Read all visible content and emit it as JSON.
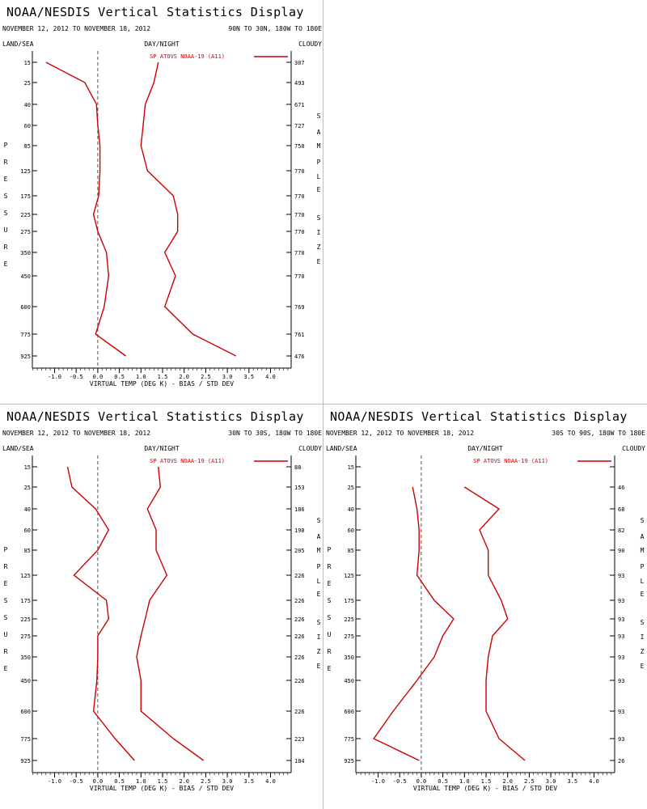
{
  "title": "NOAA/NESDIS Vertical Statistics Display",
  "date_range": "NOVEMBER 12, 2012 TO NOVEMBER 18, 2012",
  "header_labels": {
    "land_sea": "LAND/SEA",
    "day_night": "DAY/NIGHT",
    "cloudy": "CLOUDY"
  },
  "left_axis_label": "PRESSURE",
  "right_axis_label": "SAMPLE SIZE",
  "colors": {
    "series": "#cc0000",
    "zero_line": "#555555",
    "axis": "#000000"
  },
  "chart_data": [
    {
      "type": "line",
      "region": "90N TO 30N, 180W TO 180E",
      "legend": "SP ATOVS NOAA-19 (A11)",
      "xlabel": "VIRTUAL TEMP (DEG K) - BIAS / STD DEV",
      "x_ticks": [
        "-1.0",
        "-0.5",
        "0.0",
        "0.5",
        "1.0",
        "1.5",
        "2.0",
        "2.5",
        "3.0",
        "3.5",
        "4.0"
      ],
      "xlim": [
        -1.5,
        4.5
      ],
      "pressure_levels": [
        15,
        25,
        40,
        60,
        85,
        125,
        175,
        225,
        275,
        350,
        450,
        600,
        775,
        925
      ],
      "sample_size": [
        "307",
        "493",
        "671",
        "727",
        "750",
        "770",
        "770",
        "770",
        "770",
        "770",
        "770",
        "769",
        "761",
        "476"
      ],
      "series": [
        {
          "name": "BIAS",
          "points": [
            [
              15,
              -1.2
            ],
            [
              25,
              -0.3
            ],
            [
              40,
              -0.03
            ],
            [
              60,
              0.0
            ],
            [
              85,
              0.05
            ],
            [
              125,
              0.05
            ],
            [
              175,
              0.02
            ],
            [
              225,
              -0.1
            ],
            [
              275,
              0.0
            ],
            [
              350,
              0.2
            ],
            [
              450,
              0.25
            ],
            [
              600,
              0.15
            ],
            [
              775,
              -0.05
            ],
            [
              925,
              0.65
            ]
          ]
        },
        {
          "name": "STD DEV",
          "points": [
            [
              15,
              1.4
            ],
            [
              25,
              1.3
            ],
            [
              40,
              1.1
            ],
            [
              60,
              1.05
            ],
            [
              85,
              1.0
            ],
            [
              125,
              1.15
            ],
            [
              175,
              1.75
            ],
            [
              225,
              1.85
            ],
            [
              275,
              1.85
            ],
            [
              350,
              1.55
            ],
            [
              450,
              1.8
            ],
            [
              600,
              1.55
            ],
            [
              775,
              2.2
            ],
            [
              925,
              3.2
            ]
          ]
        }
      ]
    },
    {
      "type": "line",
      "region": "30N TO 30S, 180W TO 180E",
      "legend": "SP ATOVS NOAA-19 (A11)",
      "xlabel": "VIRTUAL TEMP (DEG K) - BIAS / STD DEV",
      "x_ticks": [
        "-1.0",
        "-0.5",
        "0.0",
        "0.5",
        "1.0",
        "1.5",
        "2.0",
        "2.5",
        "3.0",
        "3.5",
        "4.0"
      ],
      "xlim": [
        -1.5,
        4.5
      ],
      "pressure_levels": [
        15,
        25,
        40,
        60,
        85,
        125,
        175,
        225,
        275,
        350,
        450,
        600,
        775,
        925
      ],
      "sample_size": [
        "88",
        "153",
        "186",
        "198",
        "205",
        "226",
        "226",
        "226",
        "226",
        "226",
        "226",
        "226",
        "223",
        "184"
      ],
      "series": [
        {
          "name": "BIAS",
          "points": [
            [
              15,
              -0.7
            ],
            [
              25,
              -0.6
            ],
            [
              40,
              -0.05
            ],
            [
              60,
              0.25
            ],
            [
              85,
              0.0
            ],
            [
              125,
              -0.55
            ],
            [
              175,
              0.2
            ],
            [
              225,
              0.25
            ],
            [
              275,
              0.0
            ],
            [
              350,
              0.0
            ],
            [
              450,
              -0.02
            ],
            [
              600,
              -0.1
            ],
            [
              775,
              0.4
            ],
            [
              925,
              0.85
            ]
          ]
        },
        {
          "name": "STD DEV",
          "points": [
            [
              15,
              1.4
            ],
            [
              25,
              1.45
            ],
            [
              40,
              1.15
            ],
            [
              60,
              1.35
            ],
            [
              85,
              1.35
            ],
            [
              125,
              1.6
            ],
            [
              175,
              1.2
            ],
            [
              225,
              1.1
            ],
            [
              275,
              1.0
            ],
            [
              350,
              0.9
            ],
            [
              450,
              1.0
            ],
            [
              600,
              1.0
            ],
            [
              775,
              1.75
            ],
            [
              925,
              2.45
            ]
          ]
        }
      ]
    },
    {
      "type": "line",
      "region": "30S TO 90S, 180W TO 180E",
      "legend": "SP ATOVS NOAA-19 (A11)",
      "xlabel": "VIRTUAL TEMP (DEG K) - BIAS / STD DEV",
      "x_ticks": [
        "-1.0",
        "-0.5",
        "0.0",
        "0.5",
        "1.0",
        "1.5",
        "2.0",
        "2.5",
        "3.0",
        "3.5",
        "4.0"
      ],
      "xlim": [
        -1.5,
        4.5
      ],
      "pressure_levels": [
        15,
        25,
        40,
        60,
        85,
        125,
        175,
        225,
        275,
        350,
        450,
        600,
        775,
        925
      ],
      "sample_size": [
        "",
        "46",
        "68",
        "82",
        "90",
        "93",
        "93",
        "93",
        "93",
        "93",
        "93",
        "93",
        "93",
        "26"
      ],
      "series": [
        {
          "name": "BIAS",
          "points": [
            [
              25,
              -0.2
            ],
            [
              40,
              -0.1
            ],
            [
              60,
              -0.05
            ],
            [
              85,
              -0.05
            ],
            [
              125,
              -0.1
            ],
            [
              175,
              0.3
            ],
            [
              225,
              0.75
            ],
            [
              275,
              0.5
            ],
            [
              350,
              0.3
            ],
            [
              450,
              -0.1
            ],
            [
              600,
              -0.65
            ],
            [
              775,
              -1.1
            ],
            [
              925,
              -0.05
            ]
          ]
        },
        {
          "name": "STD DEV",
          "points": [
            [
              25,
              1.0
            ],
            [
              40,
              1.8
            ],
            [
              60,
              1.35
            ],
            [
              85,
              1.55
            ],
            [
              125,
              1.55
            ],
            [
              175,
              1.85
            ],
            [
              225,
              2.0
            ],
            [
              275,
              1.65
            ],
            [
              350,
              1.55
            ],
            [
              450,
              1.5
            ],
            [
              600,
              1.5
            ],
            [
              775,
              1.8
            ],
            [
              925,
              2.4
            ]
          ]
        }
      ]
    }
  ]
}
